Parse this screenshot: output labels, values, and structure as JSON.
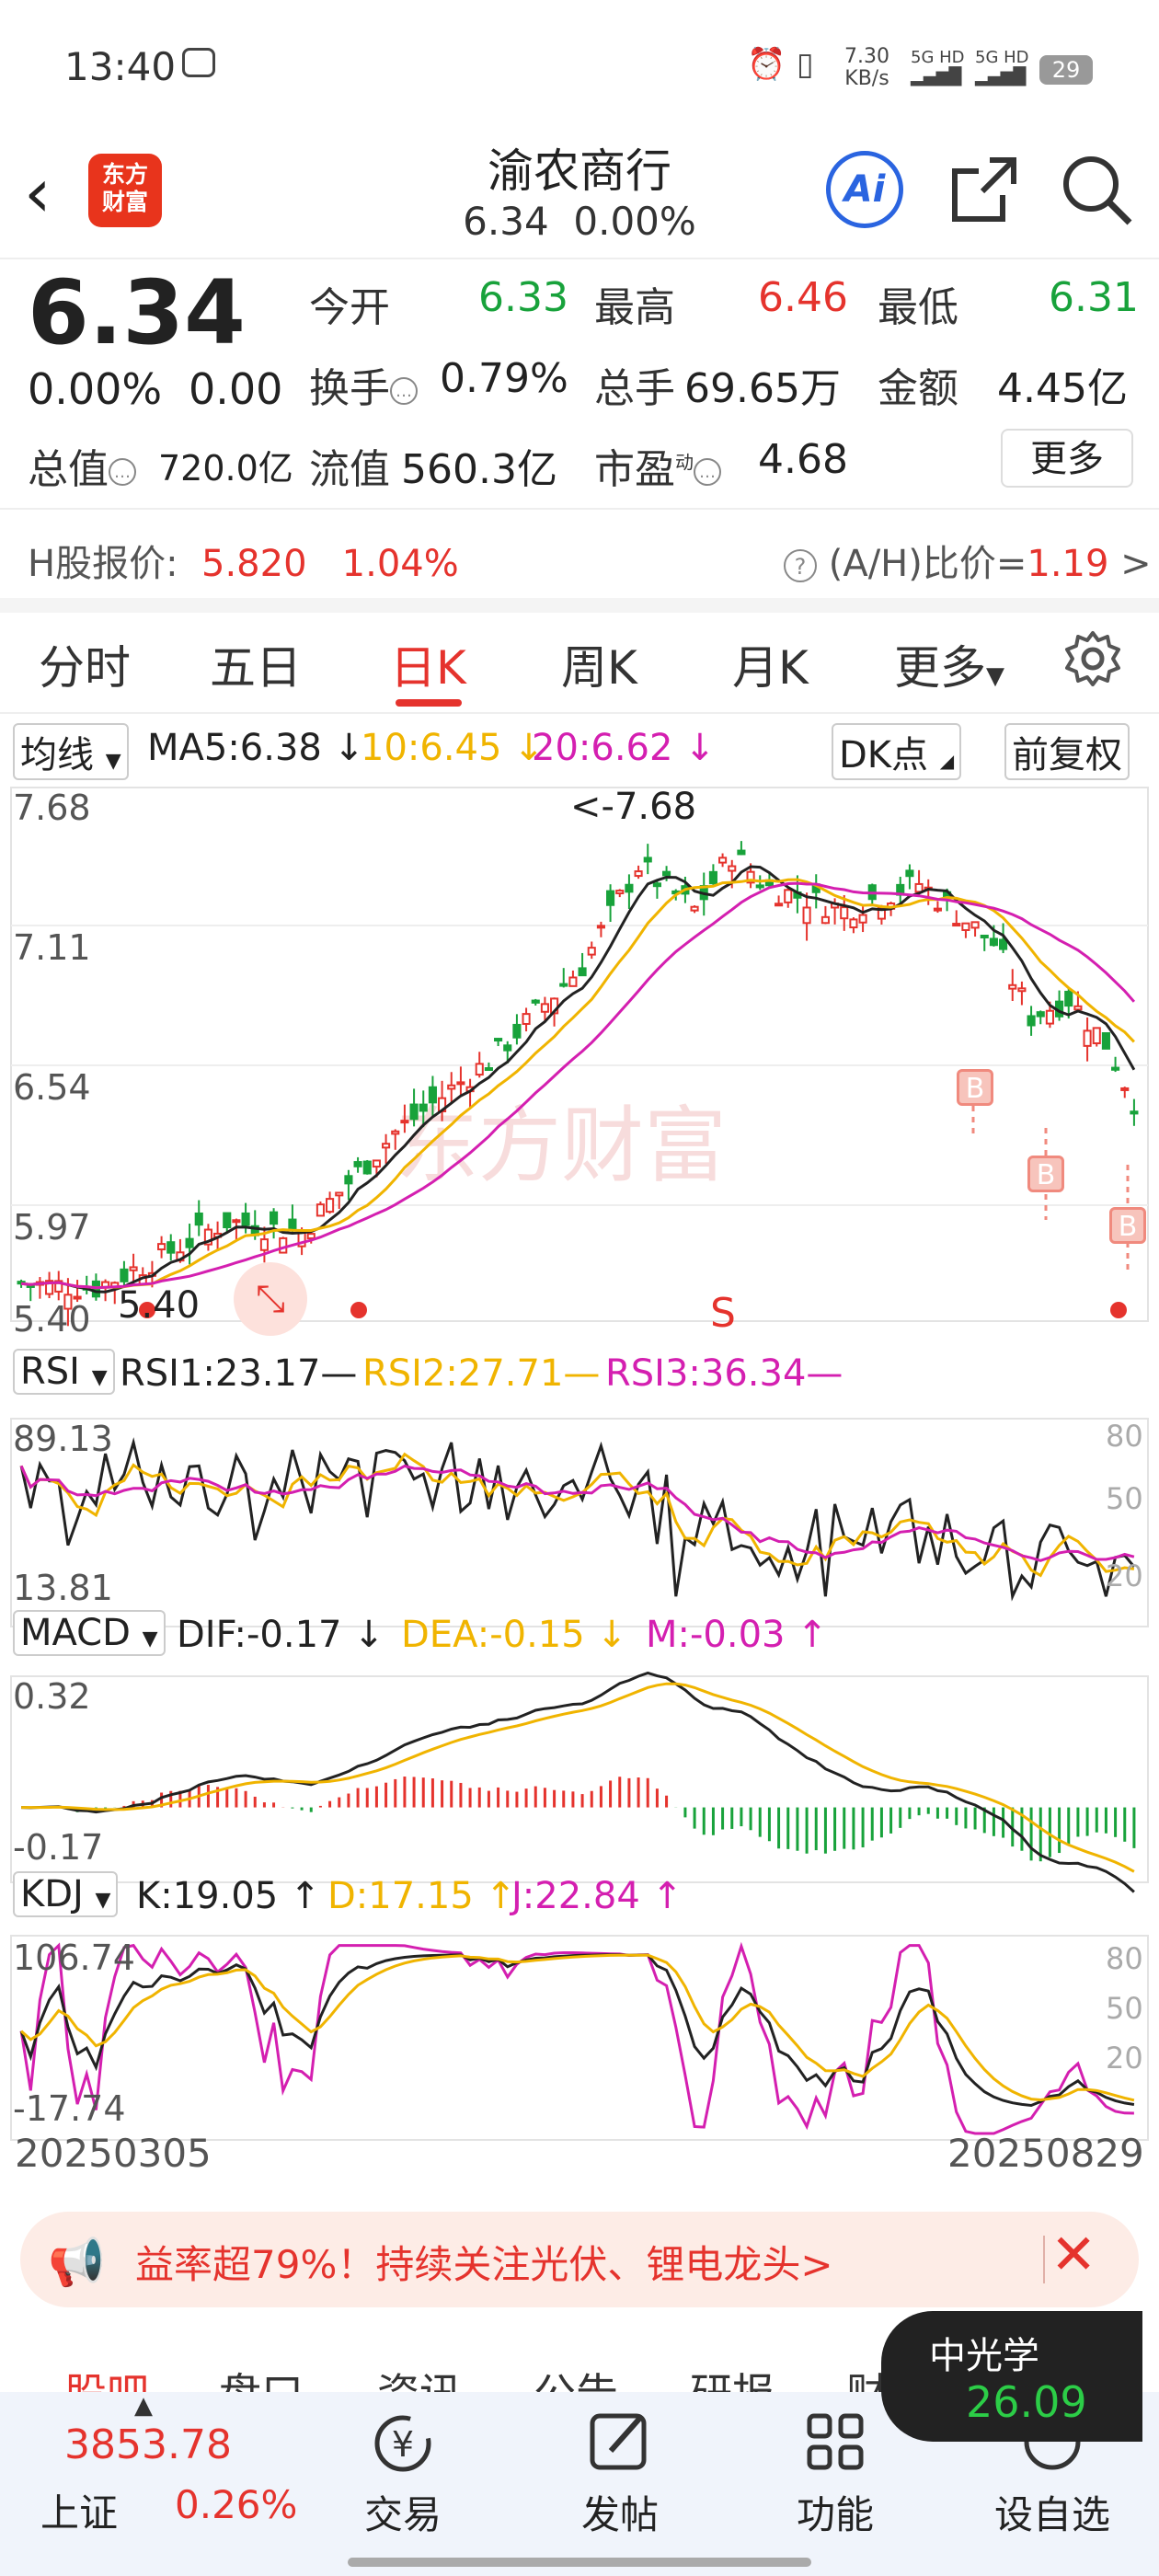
{
  "status": {
    "time": "13:40",
    "net_speed_top": "7.30",
    "net_speed_unit": "KB/s",
    "net1": "5G HD",
    "net2": "5G HD",
    "battery": "29"
  },
  "header": {
    "brand_line1": "东方",
    "brand_line2": "财富",
    "stock_name": "渝农商行",
    "price": "6.34",
    "pct": "0.00%",
    "ai_label": "Ai"
  },
  "quote": {
    "price": "6.34",
    "change_pct": "0.00%",
    "change_abs": "0.00",
    "open_label": "今开",
    "open": "6.33",
    "high_label": "最高",
    "high": "6.46",
    "low_label": "最低",
    "low": "6.31",
    "turnover_label": "换手",
    "turnover": "0.79%",
    "volume_label": "总手",
    "volume": "69.65万",
    "amount_label": "金额",
    "amount": "4.45亿",
    "mktcap_label": "总值",
    "mktcap": "720.0亿",
    "float_label": "流值",
    "float_cap": "560.3亿",
    "pe_label": "市盈",
    "pe_sup": "动",
    "pe": "4.68",
    "more_button": "更多"
  },
  "h_share": {
    "label": "H股报价:",
    "price": "5.820",
    "pct": "1.04%",
    "ratio_label": "(A/H)比价=",
    "ratio": "1.19",
    "arrow": ">"
  },
  "tabs": [
    "分时",
    "五日",
    "日K",
    "周K",
    "月K",
    "更多"
  ],
  "active_tab": "日K",
  "ma_row": {
    "selector": "均线",
    "ma5": "MA5:6.38 ↓",
    "ma10": "10:6.45 ↓",
    "ma20": "20:6.62 ↓",
    "dk": "DK点",
    "fq": "前复权"
  },
  "kline": {
    "ymax": "7.68",
    "y2": "7.11",
    "y3": "6.54",
    "y4": "5.97",
    "ymin": "5.40",
    "high_label": "<-7.68",
    "low_label": "5.40",
    "b_marker": "B",
    "s_marker": "S",
    "watermark": "东方财富"
  },
  "rsi": {
    "selector": "RSI",
    "rsi1": "RSI1:23.17—",
    "rsi2": "RSI2:27.71—",
    "rsi3": "RSI3:36.34—",
    "ymax": "89.13",
    "ymin": "13.81",
    "g80": "80",
    "g50": "50",
    "g20": "20"
  },
  "macd": {
    "selector": "MACD",
    "dif": "DIF:-0.17 ↓",
    "dea": "DEA:-0.15 ↓",
    "m": "M:-0.03 ↑",
    "ymax": "0.32",
    "ymin": "-0.17"
  },
  "kdj": {
    "selector": "KDJ",
    "k": "K:19.05 ↑",
    "d": "D:17.15 ↑",
    "j": "J:22.84 ↑",
    "ymax": "106.74",
    "ymin": "-17.74",
    "g80": "80",
    "g50": "50",
    "g20": "20"
  },
  "dates": {
    "start": "20250305",
    "end": "20250829"
  },
  "ad": {
    "text": "益率超79%！持续关注光伏、锂电龙头>"
  },
  "subtabs": [
    "股吧",
    "盘口",
    "资讯",
    "公告",
    "研报",
    "财务"
  ],
  "float_card": {
    "name": "中光学",
    "price": "26.09"
  },
  "bottom_nav": {
    "index_value": "3853.78",
    "index_name": "上证",
    "index_pct": "0.26%",
    "items": [
      "交易",
      "发帖",
      "功能",
      "设自选"
    ]
  },
  "colors": {
    "red": "#e5332d",
    "green": "#18a23b",
    "ma10": "#f0b400",
    "ma20": "#d41fb0",
    "blue": "#2a64e0"
  }
}
